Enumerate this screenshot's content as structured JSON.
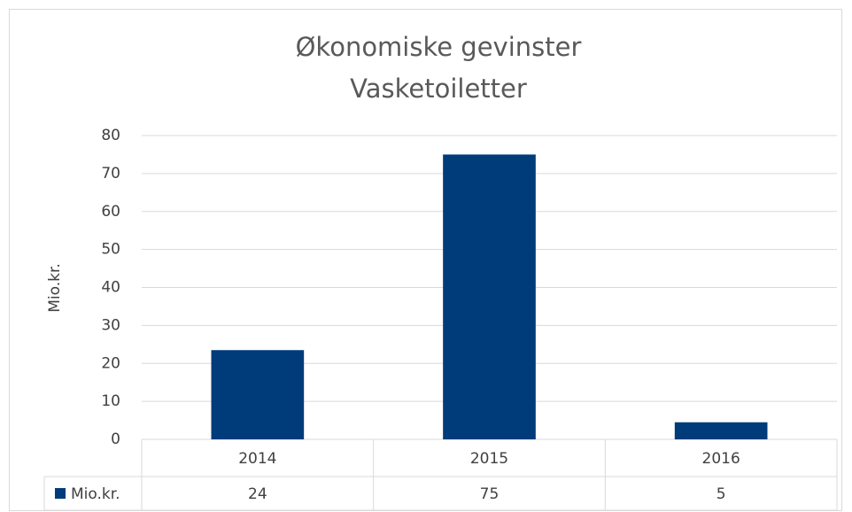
{
  "chart_data": {
    "type": "bar",
    "title": "Økonomiske gevinster",
    "subtitle": "Vasketoiletter",
    "y_label": "Mio.kr.",
    "categories": [
      "2014",
      "2015",
      "2016"
    ],
    "series": [
      {
        "name": "Mio.kr.",
        "color": "#003b7a",
        "values": [
          23.5,
          75,
          4.5
        ],
        "value_labels": [
          "24",
          "75",
          "5"
        ]
      }
    ],
    "ylim": [
      0,
      80
    ],
    "yticks": [
      0,
      10,
      20,
      30,
      40,
      50,
      60,
      70,
      80
    ],
    "grid": true,
    "legend": "table"
  }
}
